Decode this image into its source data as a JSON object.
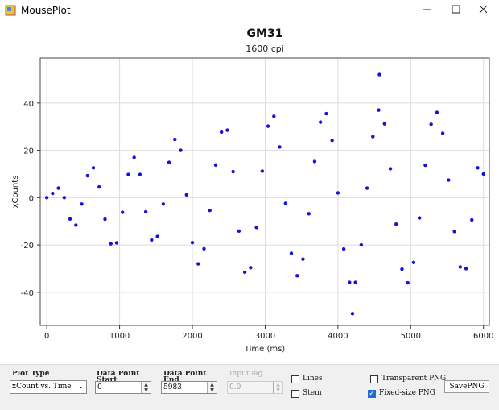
{
  "window": {
    "title": "MousePlot"
  },
  "chart_data": {
    "type": "scatter",
    "title": "GM31",
    "subtitle": "1600 cpi",
    "xlabel": "Time (ms)",
    "ylabel": "xCounts",
    "x": [
      0,
      80,
      160,
      240,
      320,
      400,
      480,
      560,
      640,
      720,
      800,
      880,
      960,
      1040,
      1120,
      1200,
      1280,
      1360,
      1440,
      1520,
      1600,
      1680,
      1760,
      1840,
      1920,
      2000,
      2080,
      2160,
      2240,
      2320,
      2400,
      2480,
      2560,
      2640,
      2720,
      2800,
      2880,
      2960,
      3040,
      3120,
      3200,
      3280,
      3360,
      3440,
      3520,
      3600,
      3680,
      3760,
      3840,
      3920,
      4000,
      4080,
      4160,
      4200,
      4240,
      4320,
      4400,
      4480,
      4560,
      4570,
      4640,
      4720,
      4800,
      4880,
      4960,
      5040,
      5120,
      5200,
      5280,
      5360,
      5440,
      5520,
      5600,
      5680,
      5760,
      5840,
      5920,
      6000
    ],
    "series": [
      {
        "color": "#1414d8",
        "values": [
          0,
          1.8,
          4,
          0,
          -9,
          -11.6,
          -2.7,
          9.3,
          12.6,
          4.5,
          -9.1,
          -19.5,
          -19.1,
          -6.2,
          9.8,
          17,
          9.8,
          -6,
          -17.9,
          -16.4,
          -2.7,
          14.9,
          24.6,
          20,
          1.2,
          -19,
          -28,
          -21.6,
          -5.4,
          13.8,
          27.7,
          28.5,
          11,
          -14.1,
          -31.5,
          -29.6,
          -12.6,
          11.2,
          30.2,
          34.4,
          21.4,
          -2.4,
          -23.5,
          -33,
          -26,
          -6.8,
          15.3,
          31.9,
          35.5,
          24.2,
          2,
          -21.7,
          -35.8,
          -49,
          -35.8,
          -20,
          4,
          25.8,
          37,
          52,
          31.2,
          12.2,
          -11.2,
          -30.2,
          -36,
          -27.4,
          -8.6,
          13.7,
          31,
          36,
          27.2,
          7.4,
          -14.3,
          -29.3,
          -30,
          -9.4,
          12.6,
          10
        ]
      }
    ],
    "xlim": [
      -90,
      6080
    ],
    "ylim": [
      -54,
      59
    ],
    "xticks": [
      0,
      1000,
      2000,
      3000,
      4000,
      5000,
      6000
    ],
    "yticks": [
      -40,
      -20,
      0,
      20,
      40
    ],
    "grid": true
  },
  "controls": {
    "plot_type": {
      "label": "Plot Type",
      "value": "xCount vs. Time"
    },
    "start": {
      "label": "Data Point Start",
      "value": "0"
    },
    "end": {
      "label": "Data Point End",
      "value": "5983"
    },
    "input_lag": {
      "label": "Input lag",
      "value": "0.0"
    },
    "lines": {
      "label": "Lines",
      "checked": false
    },
    "stem": {
      "label": "Stem",
      "checked": false
    },
    "transparent": {
      "label": "Transparent PNG",
      "checked": false
    },
    "fixed_size": {
      "label": "Fixed-size PNG",
      "checked": true
    },
    "save": {
      "label": "SavePNG"
    }
  }
}
